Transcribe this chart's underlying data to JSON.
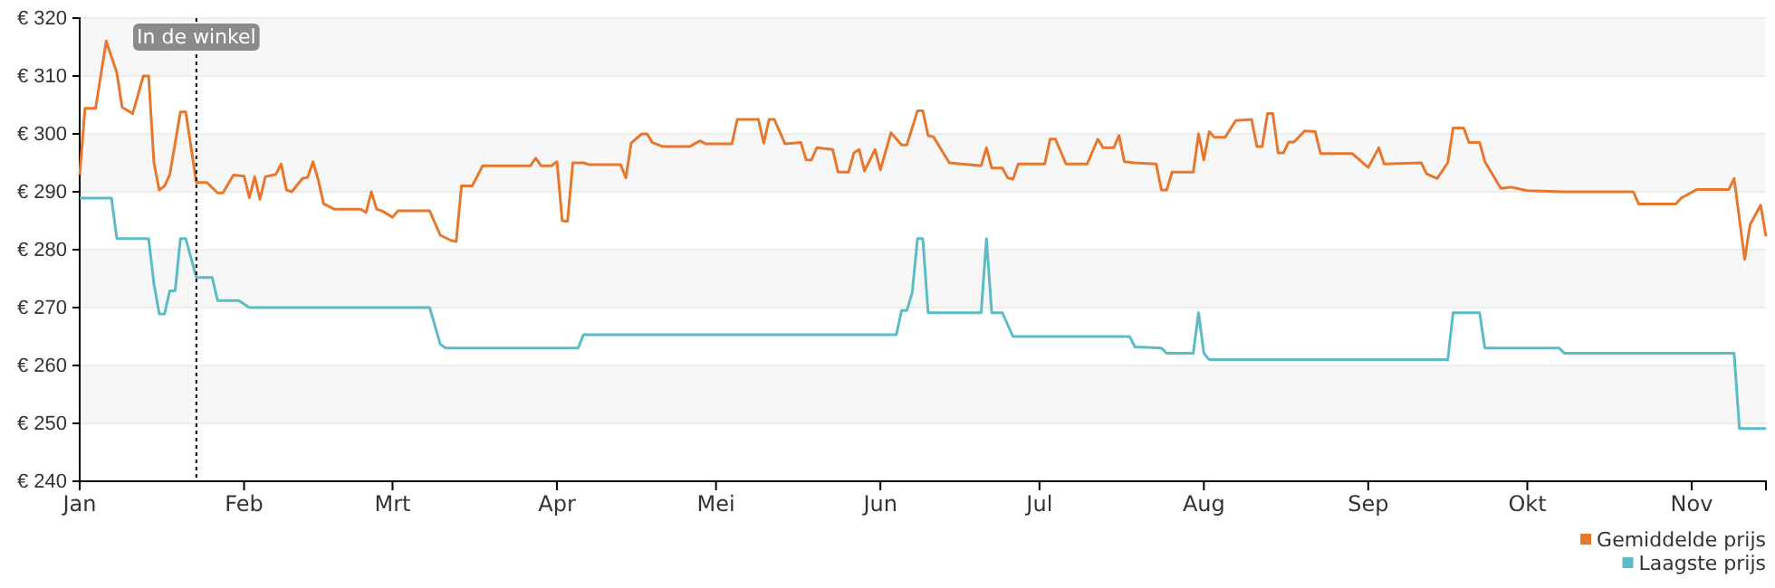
{
  "chart_data": {
    "type": "line",
    "xlim": [
      "--01-01",
      "--11-15"
    ],
    "xticks": [
      {
        "value": "--01-01",
        "label": "Jan"
      },
      {
        "value": "--02-01",
        "label": "Feb"
      },
      {
        "value": "--03-01",
        "label": "Mrt"
      },
      {
        "value": "--04-01",
        "label": "Apr"
      },
      {
        "value": "--05-01",
        "label": "Mei"
      },
      {
        "value": "--06-01",
        "label": "Jun"
      },
      {
        "value": "--07-01",
        "label": "Jul"
      },
      {
        "value": "--08-01",
        "label": "Aug"
      },
      {
        "value": "--09-01",
        "label": "Sep"
      },
      {
        "value": "--10-01",
        "label": "Okt"
      },
      {
        "value": "--11-01",
        "label": "Nov"
      }
    ],
    "ylim": [
      240,
      320
    ],
    "yticks": [
      {
        "value": 240,
        "label": "€ 240"
      },
      {
        "value": 250,
        "label": "€ 250"
      },
      {
        "value": 260,
        "label": "€ 260"
      },
      {
        "value": 270,
        "label": "€ 270"
      },
      {
        "value": 280,
        "label": "€ 280"
      },
      {
        "value": 290,
        "label": "€ 290"
      },
      {
        "value": 300,
        "label": "€ 300"
      },
      {
        "value": 310,
        "label": "€ 310"
      },
      {
        "value": 320,
        "label": "€ 320"
      }
    ],
    "grid": "y",
    "legend": "bottom right",
    "ref_lines": [
      {
        "axis": "x",
        "value": "--01-23",
        "label": "In de winkel",
        "line_style": "dotted",
        "color": "#000000"
      }
    ],
    "series": [
      {
        "name": "Gemiddelde prijs",
        "color": "#e8772e",
        "x": [
          "--01-01",
          "--01-02",
          "--01-04",
          "--01-06",
          "--01-08",
          "--01-09",
          "--01-11",
          "--01-13",
          "--01-14",
          "--01-15",
          "--01-16",
          "--01-17",
          "--01-18",
          "--01-20",
          "--01-21",
          "--01-23",
          "--01-25",
          "--01-27",
          "--01-28",
          "--01-30",
          "--02-01",
          "--02-02",
          "--02-03",
          "--02-04",
          "--02-05",
          "--02-07",
          "--02-08",
          "--02-09",
          "--02-10",
          "--02-12",
          "--02-13",
          "--02-14",
          "--02-15",
          "--02-16",
          "--02-18",
          "--02-23",
          "--02-24",
          "--02-25",
          "--02-26",
          "--02-27",
          "--03-01",
          "--03-02",
          "--03-08",
          "--03-10",
          "--03-12",
          "--03-13",
          "--03-14",
          "--03-16",
          "--03-18",
          "--03-27",
          "--03-28",
          "--03-29",
          "--03-31",
          "--04-01",
          "--04-02",
          "--04-03",
          "--04-04",
          "--04-06",
          "--04-07",
          "--04-13",
          "--04-14",
          "--04-15",
          "--04-17",
          "--04-18",
          "--04-19",
          "--04-21",
          "--04-26",
          "--04-28",
          "--04-29",
          "--05-04",
          "--05-05",
          "--05-09",
          "--05-10",
          "--05-11",
          "--05-12",
          "--05-14",
          "--05-17",
          "--05-18",
          "--05-19",
          "--05-20",
          "--05-23",
          "--05-24",
          "--05-26",
          "--05-27",
          "--05-28",
          "--05-29",
          "--05-31",
          "--06-01",
          "--06-03",
          "--06-05",
          "--06-06",
          "--06-08",
          "--06-09",
          "--06-10",
          "--06-11",
          "--06-14",
          "--06-20",
          "--06-21",
          "--06-22",
          "--06-24",
          "--06-25",
          "--06-26",
          "--06-27",
          "--07-02",
          "--07-03",
          "--07-04",
          "--07-06",
          "--07-10",
          "--07-12",
          "--07-13",
          "--07-15",
          "--07-16",
          "--07-17",
          "--07-19",
          "--07-23",
          "--07-24",
          "--07-25",
          "--07-26",
          "--07-30",
          "--07-31",
          "--08-01",
          "--08-02",
          "--08-03",
          "--08-05",
          "--08-07",
          "--08-10",
          "--08-11",
          "--08-12",
          "--08-13",
          "--08-14",
          "--08-15",
          "--08-16",
          "--08-17",
          "--08-18",
          "--08-20",
          "--08-22",
          "--08-23",
          "--08-29",
          "--08-30",
          "--09-01",
          "--09-03",
          "--09-04",
          "--09-11",
          "--09-12",
          "--09-14",
          "--09-16",
          "--09-17",
          "--09-19",
          "--09-20",
          "--09-22",
          "--09-23",
          "--09-26",
          "--09-28",
          "--10-01",
          "--10-08",
          "--10-21",
          "--10-22",
          "--10-29",
          "--10-30",
          "--11-02",
          "--11-08",
          "--11-09",
          "--11-11",
          "--11-12",
          "--11-14",
          "--11-15"
        ],
        "values": [
          292.9,
          304.4,
          304.4,
          316,
          310.6,
          304.6,
          303.5,
          310,
          310,
          295,
          290.3,
          291,
          293,
          303.8,
          303.8,
          291.6,
          291.6,
          289.8,
          289.8,
          292.9,
          292.7,
          289,
          292.6,
          288.7,
          292.6,
          293,
          294.8,
          290.3,
          290,
          292.3,
          292.5,
          295.2,
          292,
          287.9,
          287,
          287,
          286.4,
          290,
          287,
          286.7,
          285.6,
          286.7,
          286.7,
          282.5,
          281.6,
          281.4,
          291,
          291,
          294.5,
          294.5,
          295.8,
          294.5,
          294.5,
          295.2,
          285,
          284.9,
          295,
          295,
          294.7,
          294.7,
          292.4,
          298.4,
          300,
          300,
          298.5,
          297.8,
          297.8,
          298.8,
          298.3,
          298.3,
          302.5,
          302.5,
          298.4,
          302.5,
          302.5,
          298.3,
          298.5,
          295.5,
          295.5,
          297.6,
          297.3,
          293.4,
          293.4,
          296.7,
          297.3,
          293.6,
          297.3,
          293.8,
          300.2,
          298.1,
          298.1,
          304,
          304,
          299.7,
          299.5,
          295,
          294.5,
          297.6,
          294.1,
          294.1,
          292.4,
          292.2,
          294.8,
          294.8,
          299.1,
          299.1,
          294.8,
          294.8,
          299.1,
          297.6,
          297.6,
          299.7,
          295.2,
          295,
          294.8,
          290.3,
          290.3,
          293.4,
          293.4,
          300,
          295.5,
          300.4,
          299.4,
          299.4,
          302.3,
          302.5,
          297.8,
          297.8,
          303.5,
          303.5,
          296.7,
          296.7,
          298.6,
          298.6,
          300.5,
          300.4,
          296.6,
          296.6,
          295.8,
          294.2,
          297.6,
          294.8,
          295,
          293.1,
          292.3,
          295,
          301,
          301,
          298.5,
          298.5,
          295.2,
          290.6,
          290.8,
          290.2,
          290,
          290,
          287.9,
          287.9,
          288.9,
          290.4,
          290.4,
          292.3,
          278.3,
          284.3,
          287.7,
          282.3
        ]
      },
      {
        "name": "Laagste prijs",
        "color": "#5bbcc4",
        "x": [
          "--01-01",
          "--01-07",
          "--01-08",
          "--01-14",
          "--01-15",
          "--01-16",
          "--01-17",
          "--01-18",
          "--01-19",
          "--01-20",
          "--01-21",
          "--01-23",
          "--01-26",
          "--01-27",
          "--01-31",
          "--02-02",
          "--03-08",
          "--03-10",
          "--03-11",
          "--04-05",
          "--04-06",
          "--06-04",
          "--06-05",
          "--06-06",
          "--06-07",
          "--06-08",
          "--06-09",
          "--06-10",
          "--06-20",
          "--06-21",
          "--06-22",
          "--06-24",
          "--06-26",
          "--07-18",
          "--07-19",
          "--07-24",
          "--07-25",
          "--07-30",
          "--07-31",
          "--08-01",
          "--08-02",
          "--09-16",
          "--09-17",
          "--09-22",
          "--09-23",
          "--10-07",
          "--10-08",
          "--11-09",
          "--11-10",
          "--11-15"
        ],
        "values": [
          288.9,
          288.9,
          281.9,
          281.9,
          274.1,
          268.9,
          268.9,
          272.9,
          272.9,
          281.9,
          281.9,
          275.2,
          275.2,
          271.2,
          271.2,
          270,
          270,
          263.7,
          263,
          263,
          265.3,
          265.3,
          269.5,
          269.5,
          272.6,
          281.9,
          281.9,
          269.1,
          269.1,
          281.9,
          269.1,
          269.1,
          265,
          265,
          263.2,
          263,
          262.1,
          262.1,
          269.1,
          262.1,
          261,
          261,
          269.1,
          269.1,
          263,
          263,
          262.1,
          262.1,
          249.1,
          249.1
        ]
      }
    ]
  }
}
